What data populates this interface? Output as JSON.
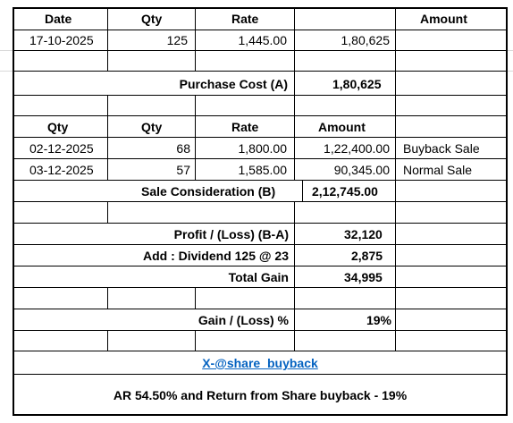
{
  "purchase": {
    "headers": {
      "date": "Date",
      "qty": "Qty",
      "rate": "Rate",
      "amount": "Amount"
    },
    "row": {
      "date": "17-10-2025",
      "qty": "125",
      "rate": "1,445.00",
      "amount": "1,80,625"
    },
    "cost_label": "Purchase Cost (A)",
    "cost_value": "1,80,625"
  },
  "sale": {
    "headers": {
      "col1": "Qty",
      "qty": "Qty",
      "rate": "Rate",
      "amount": "Amount"
    },
    "rows": [
      {
        "date": "02-12-2025",
        "qty": "68",
        "rate": "1,800.00",
        "amount": "1,22,400.00",
        "note": "Buyback Sale"
      },
      {
        "date": "03-12-2025",
        "qty": "57",
        "rate": "1,585.00",
        "amount": "90,345.00",
        "note": "Normal Sale"
      }
    ],
    "consideration_label": "Sale Consideration (B)",
    "consideration_value": "2,12,745.00"
  },
  "summary": {
    "profit_label": "Profit / (Loss) (B-A)",
    "profit_value": "32,120",
    "dividend_label": "Add : Dividend 125  @ 23",
    "dividend_value": "2,875",
    "total_label": "Total Gain",
    "total_value": "34,995",
    "gain_pct_label": "Gain / (Loss) %",
    "gain_pct_value": "19%"
  },
  "footer": {
    "link": "X-@share_buyback",
    "note": "AR 54.50% and Return from Share buyback - 19%"
  }
}
